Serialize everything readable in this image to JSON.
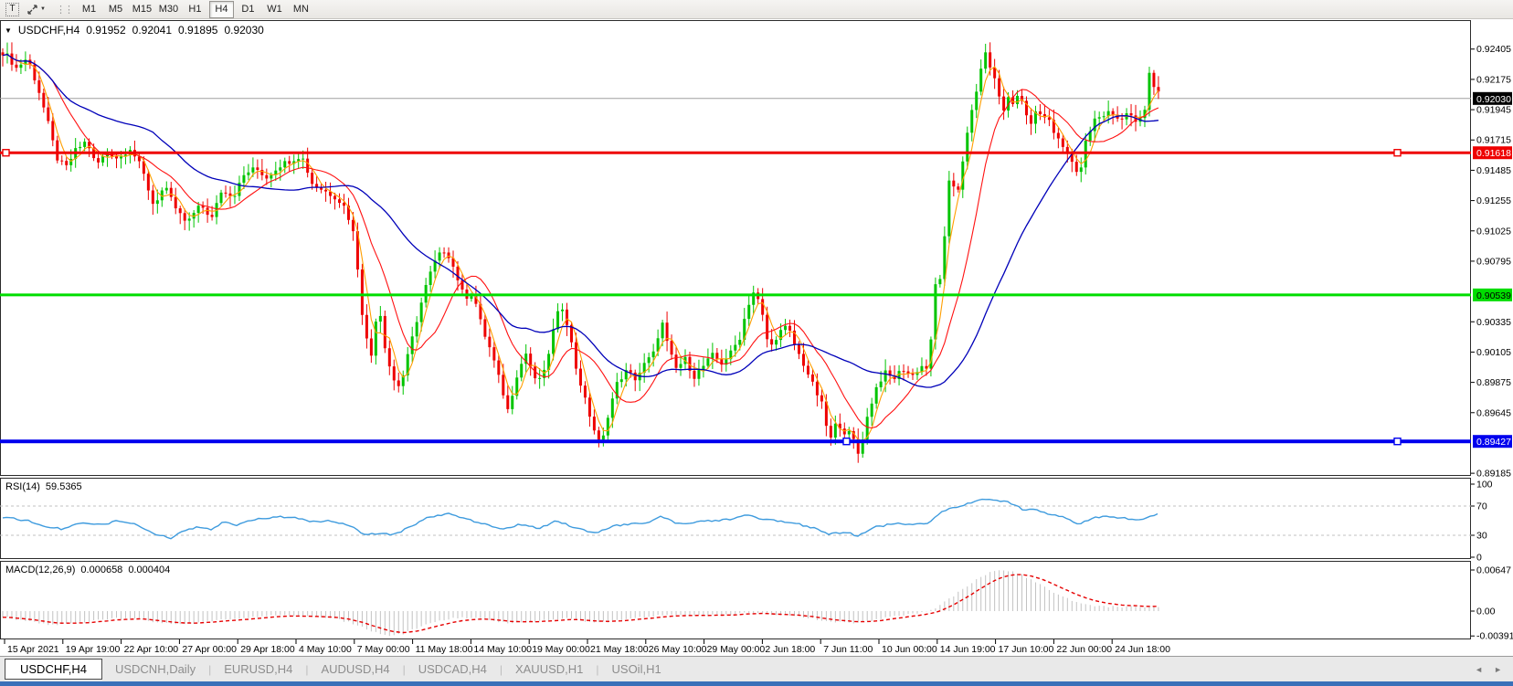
{
  "toolbar": {
    "text_tool": "T",
    "timeframes": [
      "M1",
      "M5",
      "M15",
      "M30",
      "H1",
      "H4",
      "D1",
      "W1",
      "MN"
    ],
    "active_timeframe": "H4"
  },
  "chart": {
    "title": "USDCHF,H4"
  },
  "tabs": [
    {
      "label": "USDCHF,H4",
      "active": true
    },
    {
      "label": "USDCNH,Daily",
      "active": false
    },
    {
      "label": "EURUSD,H4",
      "active": false
    },
    {
      "label": "AUDUSD,H4",
      "active": false
    },
    {
      "label": "USDCAD,H4",
      "active": false
    },
    {
      "label": "XAUUSD,H1",
      "active": false
    },
    {
      "label": "USOil,H1",
      "active": false
    }
  ],
  "tab_arrows": {
    "left": "◄",
    "right": "►"
  },
  "chart_data": {
    "type": "candlestick",
    "symbol": "USDCHF",
    "timeframe": "H4",
    "ohlc_current": {
      "open": "0.91952",
      "high": "0.92041",
      "low": "0.91895",
      "close": "0.92030"
    },
    "price_axis": {
      "top": 0.92625,
      "bottom": 0.89165,
      "ticks": [
        "0.92405",
        "0.92175",
        "0.91945",
        "0.91715",
        "0.91485",
        "0.91255",
        "0.91025",
        "0.90795",
        "0.90335",
        "0.90105",
        "0.89875",
        "0.89645",
        "0.89185"
      ]
    },
    "current_price": {
      "value": 0.9203,
      "label": "0.92030",
      "box_bg": "#000000",
      "box_text": "#ffffff",
      "line_color": "#a0a0a0"
    },
    "levels": [
      {
        "price": 0.91618,
        "label": "0.91618",
        "color": "#ee0000",
        "text_color": "#ffffff",
        "thickness": 3,
        "handles": [
          3,
          1526
        ]
      },
      {
        "price": 0.90539,
        "label": "0.90539",
        "color": "#00dd00",
        "text_color": "#000000",
        "thickness": 3,
        "handles": []
      },
      {
        "price": 0.89427,
        "label": "0.89427",
        "color": "#0000ee",
        "text_color": "#ffffff",
        "thickness": 4,
        "handles": [
          923,
          1526
        ]
      }
    ],
    "date_labels": [
      "15 Apr 2021",
      "19 Apr 19:00",
      "22 Apr 10:00",
      "27 Apr 00:00",
      "29 Apr 18:00",
      "4 May 10:00",
      "7 May 00:00",
      "11 May 18:00",
      "14 May 10:00",
      "19 May 00:00",
      "21 May 18:00",
      "26 May 10:00",
      "29 May 00:00",
      "2 Jun 18:00",
      "7 Jun 11:00",
      "10 Jun 00:00",
      "14 Jun 19:00",
      "17 Jun 10:00",
      "22 Jun 00:00",
      "24 Jun 18:00"
    ],
    "colors": {
      "bull": "#00c400",
      "bear": "#ee0000",
      "panel_border": "#2b2b2b",
      "grid_dash": "#c0c0c0"
    },
    "moving_averages": [
      {
        "name": "fast",
        "period": 4,
        "color": "#ff9e00",
        "width": 1.1
      },
      {
        "name": "medium",
        "period": 12,
        "color": "#ff1111",
        "width": 1.1
      },
      {
        "name": "slow",
        "period": 34,
        "color": "#0000b9",
        "width": 1.3
      }
    ],
    "price_path": [
      [
        5,
        0.9238
      ],
      [
        18,
        0.9226
      ],
      [
        30,
        0.9234
      ],
      [
        42,
        0.921
      ],
      [
        52,
        0.9186
      ],
      [
        62,
        0.9158
      ],
      [
        72,
        0.915
      ],
      [
        82,
        0.9163
      ],
      [
        95,
        0.9171
      ],
      [
        105,
        0.9152
      ],
      [
        118,
        0.9163
      ],
      [
        130,
        0.9157
      ],
      [
        142,
        0.9166
      ],
      [
        155,
        0.915
      ],
      [
        168,
        0.9122
      ],
      [
        180,
        0.9136
      ],
      [
        192,
        0.912
      ],
      [
        205,
        0.9107
      ],
      [
        218,
        0.9124
      ],
      [
        230,
        0.911
      ],
      [
        243,
        0.9135
      ],
      [
        255,
        0.9128
      ],
      [
        268,
        0.9146
      ],
      [
        280,
        0.915
      ],
      [
        292,
        0.9143
      ],
      [
        305,
        0.9152
      ],
      [
        318,
        0.9156
      ],
      [
        330,
        0.916
      ],
      [
        342,
        0.9138
      ],
      [
        355,
        0.9133
      ],
      [
        368,
        0.9128
      ],
      [
        378,
        0.912
      ],
      [
        388,
        0.9098
      ],
      [
        398,
        0.903
      ],
      [
        406,
        0.9006
      ],
      [
        414,
        0.905
      ],
      [
        422,
        0.9012
      ],
      [
        430,
        0.899
      ],
      [
        438,
        0.8984
      ],
      [
        448,
        0.9012
      ],
      [
        458,
        0.904
      ],
      [
        468,
        0.9065
      ],
      [
        478,
        0.9082
      ],
      [
        488,
        0.9089
      ],
      [
        498,
        0.9072
      ],
      [
        508,
        0.9052
      ],
      [
        518,
        0.9055
      ],
      [
        528,
        0.9028
      ],
      [
        538,
        0.901
      ],
      [
        548,
        0.8986
      ],
      [
        556,
        0.8966
      ],
      [
        566,
        0.8994
      ],
      [
        576,
        0.901
      ],
      [
        586,
        0.8988
      ],
      [
        596,
        0.8995
      ],
      [
        606,
        0.9028
      ],
      [
        614,
        0.9048
      ],
      [
        622,
        0.903
      ],
      [
        630,
        0.9
      ],
      [
        640,
        0.8975
      ],
      [
        650,
        0.8952
      ],
      [
        658,
        0.8938
      ],
      [
        666,
        0.8965
      ],
      [
        676,
        0.8988
      ],
      [
        686,
        0.8996
      ],
      [
        696,
        0.899
      ],
      [
        706,
        0.9002
      ],
      [
        716,
        0.901
      ],
      [
        724,
        0.9035
      ],
      [
        732,
        0.9012
      ],
      [
        740,
        0.8998
      ],
      [
        750,
        0.9005
      ],
      [
        760,
        0.8992
      ],
      [
        770,
        0.9
      ],
      [
        780,
        0.9008
      ],
      [
        790,
        0.9002
      ],
      [
        800,
        0.901
      ],
      [
        810,
        0.9022
      ],
      [
        818,
        0.9045
      ],
      [
        826,
        0.9058
      ],
      [
        834,
        0.904
      ],
      [
        842,
        0.9012
      ],
      [
        852,
        0.9025
      ],
      [
        862,
        0.903
      ],
      [
        872,
        0.9012
      ],
      [
        882,
        0.8998
      ],
      [
        890,
        0.8985
      ],
      [
        900,
        0.897
      ],
      [
        908,
        0.8942
      ],
      [
        916,
        0.8958
      ],
      [
        924,
        0.895
      ],
      [
        932,
        0.8948
      ],
      [
        940,
        0.8932
      ],
      [
        948,
        0.8958
      ],
      [
        958,
        0.8982
      ],
      [
        968,
        0.8995
      ],
      [
        978,
        0.899
      ],
      [
        988,
        0.8998
      ],
      [
        998,
        0.8992
      ],
      [
        1008,
        0.9
      ],
      [
        1016,
        0.8998
      ],
      [
        1022,
        0.904
      ],
      [
        1026,
        0.9085
      ],
      [
        1030,
        0.906
      ],
      [
        1034,
        0.9098
      ],
      [
        1038,
        0.9135
      ],
      [
        1042,
        0.9152
      ],
      [
        1046,
        0.9118
      ],
      [
        1050,
        0.9142
      ],
      [
        1056,
        0.9165
      ],
      [
        1062,
        0.9188
      ],
      [
        1068,
        0.9205
      ],
      [
        1074,
        0.9228
      ],
      [
        1080,
        0.9238
      ],
      [
        1086,
        0.9222
      ],
      [
        1092,
        0.921
      ],
      [
        1098,
        0.9192
      ],
      [
        1104,
        0.9205
      ],
      [
        1110,
        0.9198
      ],
      [
        1116,
        0.9208
      ],
      [
        1122,
        0.9192
      ],
      [
        1128,
        0.9185
      ],
      [
        1134,
        0.9194
      ],
      [
        1140,
        0.9188
      ],
      [
        1146,
        0.919
      ],
      [
        1152,
        0.9178
      ],
      [
        1158,
        0.9172
      ],
      [
        1164,
        0.9166
      ],
      [
        1170,
        0.916
      ],
      [
        1176,
        0.915
      ],
      [
        1182,
        0.9146
      ],
      [
        1188,
        0.917
      ],
      [
        1194,
        0.918
      ],
      [
        1200,
        0.919
      ],
      [
        1206,
        0.9186
      ],
      [
        1212,
        0.9196
      ],
      [
        1220,
        0.919
      ],
      [
        1228,
        0.9186
      ],
      [
        1236,
        0.9192
      ],
      [
        1244,
        0.9184
      ],
      [
        1252,
        0.919
      ],
      [
        1258,
        0.9222
      ],
      [
        1264,
        0.9212
      ],
      [
        1270,
        0.9203
      ]
    ],
    "rsi": {
      "name": "RSI(14)",
      "value": "59.5365",
      "color": "#3e9bde",
      "axis_labels": [
        {
          "v": 100,
          "label": "100"
        },
        {
          "v": 70,
          "label": "70"
        },
        {
          "v": 30,
          "label": "30"
        },
        {
          "v": 0,
          "label": "0"
        }
      ],
      "guide_levels": [
        70,
        30
      ],
      "path": [
        [
          5,
          55
        ],
        [
          30,
          50
        ],
        [
          50,
          42
        ],
        [
          70,
          38
        ],
        [
          90,
          48
        ],
        [
          110,
          44
        ],
        [
          130,
          50
        ],
        [
          150,
          45
        ],
        [
          170,
          31
        ],
        [
          187,
          26
        ],
        [
          200,
          35
        ],
        [
          215,
          41
        ],
        [
          230,
          38
        ],
        [
          245,
          48
        ],
        [
          260,
          44
        ],
        [
          280,
          52
        ],
        [
          300,
          55
        ],
        [
          320,
          55
        ],
        [
          340,
          48
        ],
        [
          360,
          50
        ],
        [
          380,
          45
        ],
        [
          400,
          31
        ],
        [
          415,
          33
        ],
        [
          430,
          30
        ],
        [
          450,
          42
        ],
        [
          470,
          55
        ],
        [
          490,
          60
        ],
        [
          510,
          52
        ],
        [
          530,
          46
        ],
        [
          550,
          37
        ],
        [
          570,
          45
        ],
        [
          590,
          40
        ],
        [
          610,
          50
        ],
        [
          630,
          40
        ],
        [
          650,
          33
        ],
        [
          670,
          42
        ],
        [
          690,
          46
        ],
        [
          710,
          48
        ],
        [
          724,
          56
        ],
        [
          740,
          46
        ],
        [
          760,
          48
        ],
        [
          780,
          50
        ],
        [
          800,
          52
        ],
        [
          818,
          58
        ],
        [
          834,
          52
        ],
        [
          852,
          50
        ],
        [
          872,
          46
        ],
        [
          890,
          40
        ],
        [
          908,
          31
        ],
        [
          924,
          35
        ],
        [
          940,
          29
        ],
        [
          958,
          41
        ],
        [
          978,
          46
        ],
        [
          998,
          45
        ],
        [
          1016,
          47
        ],
        [
          1030,
          62
        ],
        [
          1045,
          68
        ],
        [
          1060,
          74
        ],
        [
          1078,
          79
        ],
        [
          1090,
          78
        ],
        [
          1100,
          77
        ],
        [
          1112,
          70
        ],
        [
          1122,
          64
        ],
        [
          1132,
          67
        ],
        [
          1142,
          62
        ],
        [
          1152,
          58
        ],
        [
          1164,
          55
        ],
        [
          1176,
          48
        ],
        [
          1182,
          45
        ],
        [
          1192,
          52
        ],
        [
          1202,
          55
        ],
        [
          1212,
          56
        ],
        [
          1225,
          54
        ],
        [
          1240,
          52
        ],
        [
          1250,
          50
        ],
        [
          1258,
          57
        ],
        [
          1270,
          59.5
        ]
      ]
    },
    "macd": {
      "name": "MACD(12,26,9)",
      "value_main": "0.000658",
      "value_signal": "0.000404",
      "hist_color": "#c2c2c2",
      "signal_color": "#e60000",
      "axis_labels": [
        {
          "v": 0.00647,
          "label": "0.00647"
        },
        {
          "v": 0,
          "label": "0.00"
        },
        {
          "v": -0.003916,
          "label": "-0.003916"
        }
      ],
      "path": [
        [
          5,
          -0.001
        ],
        [
          30,
          -0.0016
        ],
        [
          60,
          -0.0022
        ],
        [
          90,
          -0.0018
        ],
        [
          120,
          -0.0012
        ],
        [
          150,
          -0.0011
        ],
        [
          170,
          -0.0018
        ],
        [
          190,
          -0.0021
        ],
        [
          210,
          -0.0019
        ],
        [
          230,
          -0.0016
        ],
        [
          250,
          -0.0013
        ],
        [
          270,
          -0.001
        ],
        [
          290,
          -0.0008
        ],
        [
          310,
          -0.0007
        ],
        [
          330,
          -0.0008
        ],
        [
          350,
          -0.001
        ],
        [
          370,
          -0.0013
        ],
        [
          390,
          -0.0021
        ],
        [
          410,
          -0.0033
        ],
        [
          425,
          -0.0039
        ],
        [
          440,
          -0.0036
        ],
        [
          455,
          -0.0028
        ],
        [
          470,
          -0.002
        ],
        [
          485,
          -0.0014
        ],
        [
          500,
          -0.0011
        ],
        [
          515,
          -0.001
        ],
        [
          530,
          -0.0012
        ],
        [
          545,
          -0.0016
        ],
        [
          560,
          -0.0019
        ],
        [
          575,
          -0.0017
        ],
        [
          590,
          -0.0016
        ],
        [
          605,
          -0.0013
        ],
        [
          620,
          -0.0011
        ],
        [
          635,
          -0.0014
        ],
        [
          650,
          -0.0018
        ],
        [
          665,
          -0.0017
        ],
        [
          680,
          -0.0014
        ],
        [
          695,
          -0.0011
        ],
        [
          710,
          -0.0009
        ],
        [
          725,
          -0.0006
        ],
        [
          740,
          -0.0006
        ],
        [
          755,
          -0.0007
        ],
        [
          770,
          -0.0007
        ],
        [
          785,
          -0.0006
        ],
        [
          800,
          -0.0005
        ],
        [
          815,
          -0.0003
        ],
        [
          830,
          -0.0003
        ],
        [
          845,
          -0.0005
        ],
        [
          860,
          -0.0006
        ],
        [
          875,
          -0.0008
        ],
        [
          890,
          -0.0012
        ],
        [
          905,
          -0.0016
        ],
        [
          920,
          -0.0018
        ],
        [
          935,
          -0.0019
        ],
        [
          950,
          -0.0016
        ],
        [
          965,
          -0.0011
        ],
        [
          980,
          -0.0007
        ],
        [
          995,
          -0.0005
        ],
        [
          1008,
          -0.0003
        ],
        [
          1020,
          0.0002
        ],
        [
          1032,
          0.0012
        ],
        [
          1044,
          0.0024
        ],
        [
          1056,
          0.0037
        ],
        [
          1068,
          0.005
        ],
        [
          1080,
          0.0059
        ],
        [
          1092,
          0.0064
        ],
        [
          1100,
          0.0065
        ],
        [
          1110,
          0.0062
        ],
        [
          1120,
          0.0056
        ],
        [
          1130,
          0.0048
        ],
        [
          1140,
          0.004
        ],
        [
          1150,
          0.0032
        ],
        [
          1160,
          0.0025
        ],
        [
          1170,
          0.0019
        ],
        [
          1180,
          0.0014
        ],
        [
          1190,
          0.001
        ],
        [
          1200,
          0.0008
        ],
        [
          1212,
          0.0007
        ],
        [
          1230,
          0.00066
        ],
        [
          1250,
          0.00066
        ],
        [
          1270,
          0.00066
        ]
      ]
    }
  }
}
